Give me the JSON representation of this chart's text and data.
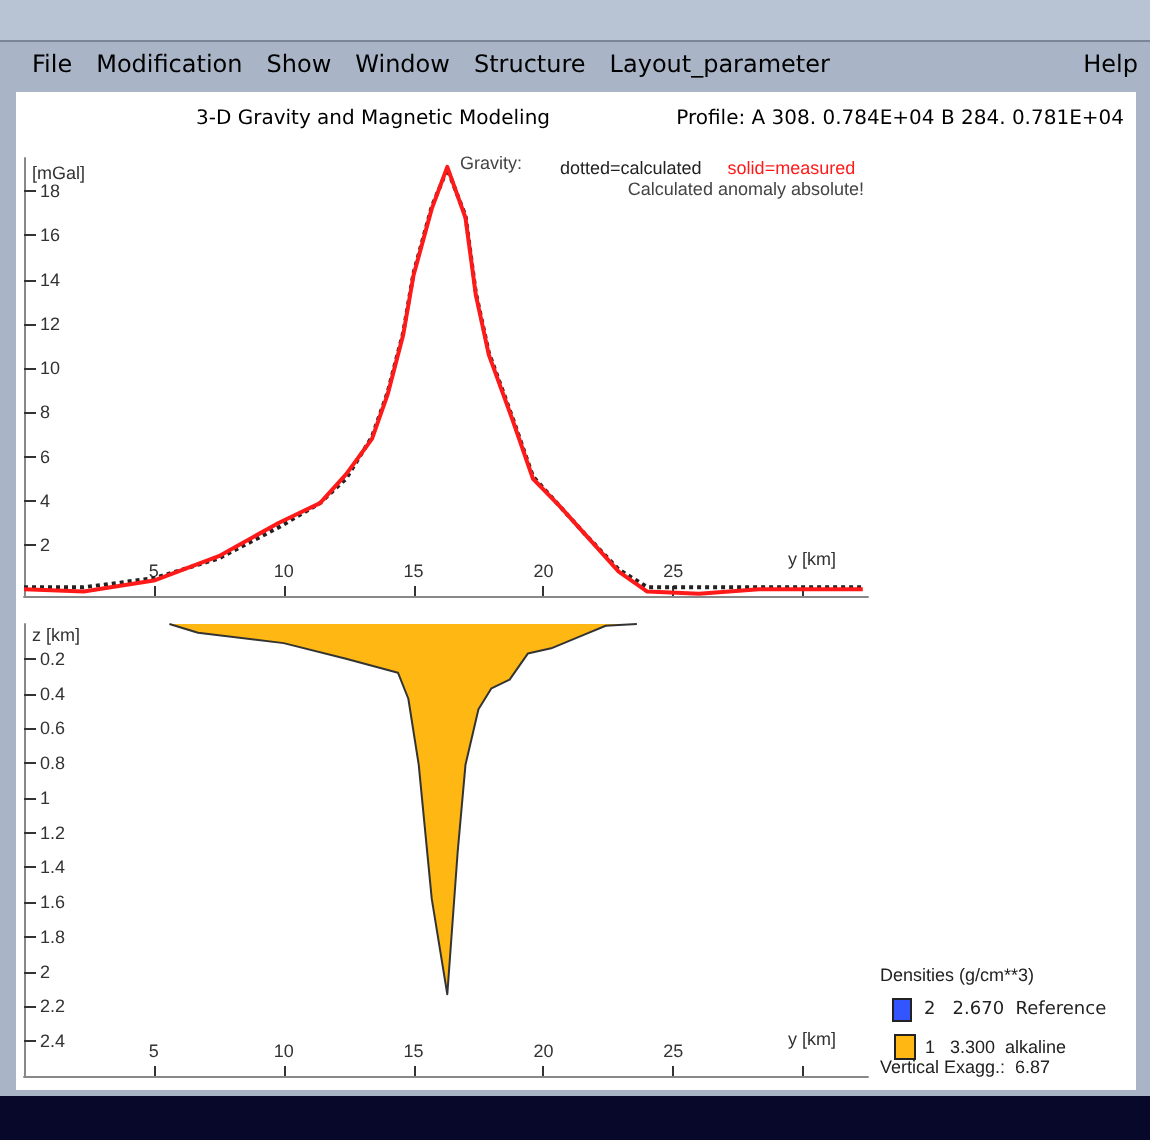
{
  "chart_data": [
    {
      "type": "line",
      "subtitle": "3-D Gravity and Magnetic Modeling",
      "ylabel": "[mGal]",
      "xlabel": "y [km]",
      "legend_title": "Gravity:",
      "legend": "top right",
      "xlim": [
        0,
        32.5
      ],
      "ylim": [
        -0.3,
        19.5
      ],
      "xticks": [
        5,
        10,
        15,
        20,
        25,
        {
          "value": 30,
          "label": null
        }
      ],
      "yticks": [
        2,
        4,
        6,
        8,
        10,
        12,
        14,
        16,
        18
      ],
      "grid": false,
      "marker": "none",
      "annotations": [
        "File",
        "Modification",
        "Show",
        "Window",
        "Structure",
        "Layout_parameter",
        "Help",
        "Profile: A 308.   0.784E+04  B 284.   0.781E+04",
        "Calculated anomaly absolute!"
      ],
      "series": [
        {
          "name": "dotted=calculated",
          "color": "#222222",
          "line_style": "dotted",
          "x": [
            0,
            2.3,
            5,
            7.5,
            9.8,
            11.4,
            12.4,
            13.4,
            14,
            14.6,
            15,
            15.7,
            16.3,
            17,
            17.4,
            17.9,
            18.8,
            19.6,
            20.6,
            21.6,
            22.9,
            24,
            26,
            28.3,
            32.3
          ],
          "values": [
            0.1,
            0.1,
            0.5,
            1.4,
            2.8,
            3.9,
            5.0,
            6.9,
            8.9,
            11.6,
            14.3,
            17.3,
            19.0,
            16.9,
            13.4,
            10.7,
            7.8,
            5.1,
            3.8,
            2.5,
            0.9,
            0.1,
            0.1,
            0.1,
            0.1
          ]
        },
        {
          "name": "solid=measured",
          "color": "#ff1a1a",
          "line_style": "solid",
          "x": [
            0,
            2.3,
            5,
            7.5,
            9.8,
            11.4,
            12.4,
            13.4,
            14,
            14.6,
            15,
            15.7,
            16.3,
            17,
            17.4,
            17.9,
            18.8,
            19.6,
            20.6,
            21.6,
            22.9,
            24,
            26,
            28.3,
            32.3
          ],
          "values": [
            0,
            -0.1,
            0.4,
            1.5,
            3.0,
            3.9,
            5.2,
            6.8,
            8.8,
            11.5,
            14.2,
            17.2,
            19.1,
            16.8,
            13.3,
            10.6,
            7.7,
            5.0,
            3.8,
            2.5,
            0.8,
            -0.1,
            -0.2,
            0,
            0
          ]
        }
      ]
    },
    {
      "type": "area",
      "ylabel": "z [km]",
      "xlabel": "y [km]",
      "legend_title": "Densities (g/cm**3)",
      "legend": "bottom right",
      "xlim": [
        0,
        32.5
      ],
      "ylim": [
        2.6,
        0
      ],
      "xticks": [
        5,
        10,
        15,
        20,
        25,
        {
          "value": 30,
          "label": null
        }
      ],
      "yticks": [
        0.2,
        0.4,
        0.6,
        0.8,
        1,
        1.2,
        1.4,
        1.6,
        1.8,
        2,
        2.2,
        2.4
      ],
      "grid": false,
      "marker": "none",
      "annotations": [
        "2   2.670  Reference",
        "Vertical Exagg.:  6.87"
      ],
      "series": [
        {
          "name": "1   3.300  alkaline",
          "color": "#ffb714",
          "x": [
            5.6,
            6.7,
            10,
            12.4,
            14.4,
            14.8,
            15.2,
            15.7,
            16.3,
            16.7,
            17,
            17.5,
            18,
            18.7,
            19.4,
            20.3,
            21.6,
            22.4,
            23.6
          ],
          "values": [
            0,
            0.05,
            0.11,
            0.2,
            0.28,
            0.43,
            0.81,
            1.58,
            2.13,
            1.31,
            0.81,
            0.49,
            0.37,
            0.32,
            0.17,
            0.14,
            0.06,
            0.01,
            0
          ]
        }
      ]
    }
  ]
}
